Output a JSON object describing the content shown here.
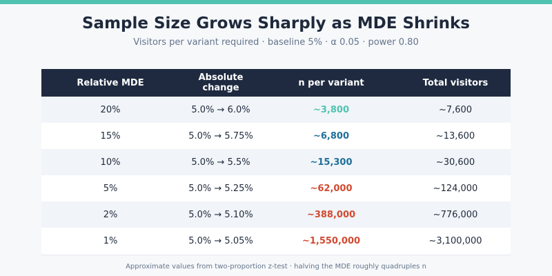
{
  "title": "Sample Size Grows Sharply as MDE Shrinks",
  "subtitle": "Visitors per variant required · baseline 5% · α 0.05 · power 0.80",
  "footnote": "Approximate values from two-proportion z-test · halving the MDE roughly quadruples n",
  "colors": {
    "accent_bar": "#4fc3b0",
    "header_bg": "#1f2a40",
    "n_teal": "#4fc3b0",
    "n_blue": "#1f6f9a",
    "n_red": "#d24a30"
  },
  "chart_data": {
    "type": "table",
    "columns": [
      "Relative MDE",
      "Absolute change",
      "n per variant",
      "Total visitors"
    ],
    "rows": [
      {
        "mde": "20%",
        "change": "5.0% → 6.0%",
        "n": "~3,800",
        "total": "~7,600",
        "n_color": "#4fc3b0"
      },
      {
        "mde": "15%",
        "change": "5.0% → 5.75%",
        "n": "~6,800",
        "total": "~13,600",
        "n_color": "#1f6f9a"
      },
      {
        "mde": "10%",
        "change": "5.0% → 5.5%",
        "n": "~15,300",
        "total": "~30,600",
        "n_color": "#1f6f9a"
      },
      {
        "mde": "5%",
        "change": "5.0% → 5.25%",
        "n": "~62,000",
        "total": "~124,000",
        "n_color": "#d24a30"
      },
      {
        "mde": "2%",
        "change": "5.0% → 5.10%",
        "n": "~388,000",
        "total": "~776,000",
        "n_color": "#d24a30"
      },
      {
        "mde": "1%",
        "change": "5.0% → 5.05%",
        "n": "~1,550,000",
        "total": "~3,100,000",
        "n_color": "#d24a30"
      }
    ]
  }
}
